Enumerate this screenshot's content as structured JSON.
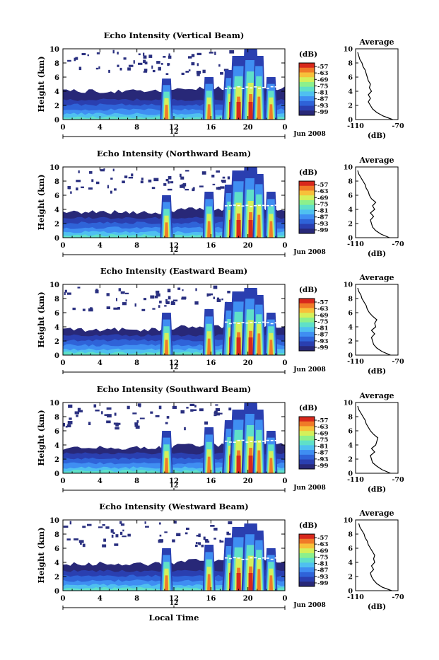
{
  "figure": {
    "xlabel": "Local Time",
    "ylabel": "Height (km)",
    "date": "Jun 2008",
    "noon_label": "12",
    "cbar_title": "(dB)",
    "avg_title": "Average",
    "avg_xlabel": "(dB)"
  },
  "chart_data": [
    {
      "type": "heatmap",
      "title": "Echo Intensity (Vertical Beam)",
      "xlabel": "",
      "ylabel": "Height (km)",
      "x_ticks": [
        "0",
        "4",
        "8",
        "12",
        "16",
        "20",
        "0"
      ],
      "y_ticks": [
        0,
        2,
        4,
        6,
        8,
        10
      ],
      "ylim": [
        0,
        10
      ],
      "colorbar": {
        "label": "(dB)",
        "ticks": [
          -57,
          -63,
          -69,
          -75,
          -81,
          -87,
          -93,
          -99
        ]
      },
      "boundary_layer_top_km": 4.0,
      "convective_cells_hour": [
        11.2,
        15.8,
        18.2,
        19.0,
        20.3,
        21.2,
        22.5
      ],
      "cell_top_km": [
        5.8,
        6.0,
        7.0,
        9.0,
        10.0,
        9.0,
        6.0
      ],
      "profile": {
        "title": "Average",
        "xlabel": "(dB)",
        "xticks": [
          -110,
          -70
        ],
        "yticks": [
          0,
          2,
          4,
          6,
          8,
          10
        ],
        "height_km": [
          0,
          0.5,
          1,
          1.5,
          2,
          2.5,
          3,
          3.5,
          4,
          4.5,
          5,
          5.5,
          6,
          6.5,
          7,
          7.5,
          8,
          8.5,
          9,
          9.5
        ],
        "value_db": [
          -75,
          -84,
          -90,
          -94,
          -96,
          -98,
          -96,
          -98,
          -95,
          -97,
          -96,
          -98,
          -99,
          -100,
          -101,
          -103,
          -104,
          -106,
          -107,
          -108
        ]
      }
    },
    {
      "type": "heatmap",
      "title": "Echo Intensity (Northward Beam)",
      "xlabel": "",
      "ylabel": "Height (km)",
      "x_ticks": [
        "0",
        "4",
        "8",
        "12",
        "16",
        "20",
        "0"
      ],
      "y_ticks": [
        0,
        2,
        4,
        6,
        8,
        10
      ],
      "ylim": [
        0,
        10
      ],
      "colorbar": {
        "label": "(dB)",
        "ticks": [
          -57,
          -63,
          -69,
          -75,
          -81,
          -87,
          -93,
          -99
        ]
      },
      "boundary_layer_top_km": 3.6,
      "convective_cells_hour": [
        11.2,
        15.8,
        18.2,
        19.0,
        20.3,
        21.2,
        22.5
      ],
      "cell_top_km": [
        6.0,
        6.5,
        7.5,
        9.5,
        10.0,
        9.0,
        6.5
      ],
      "profile": {
        "title": "Average",
        "xlabel": "(dB)",
        "xticks": [
          -110,
          -70
        ],
        "yticks": [
          0,
          2,
          4,
          6,
          8,
          10
        ],
        "height_km": [
          0,
          0.5,
          1,
          1.5,
          2,
          2.5,
          3,
          3.5,
          4,
          4.5,
          5,
          5.5,
          6,
          6.5,
          7,
          7.5,
          8,
          8.5,
          9,
          9.5
        ],
        "value_db": [
          -78,
          -86,
          -91,
          -94,
          -95,
          -96,
          -93,
          -96,
          -92,
          -94,
          -91,
          -95,
          -97,
          -98,
          -100,
          -101,
          -103,
          -105,
          -107,
          -108
        ]
      }
    },
    {
      "type": "heatmap",
      "title": "Echo Intensity (Eastward Beam)",
      "xlabel": "",
      "ylabel": "Height (km)",
      "x_ticks": [
        "0",
        "4",
        "8",
        "12",
        "16",
        "20",
        "0"
      ],
      "y_ticks": [
        0,
        2,
        4,
        6,
        8,
        10
      ],
      "ylim": [
        0,
        10
      ],
      "colorbar": {
        "label": "(dB)",
        "ticks": [
          -57,
          -63,
          -69,
          -75,
          -81,
          -87,
          -93,
          -99
        ]
      },
      "boundary_layer_top_km": 3.6,
      "convective_cells_hour": [
        11.2,
        15.8,
        18.2,
        19.0,
        20.3,
        21.2,
        22.5
      ],
      "cell_top_km": [
        6.0,
        6.5,
        7.5,
        9.0,
        9.5,
        8.5,
        6.0
      ],
      "profile": {
        "title": "Average",
        "xlabel": "(dB)",
        "xticks": [
          -110,
          -70
        ],
        "yticks": [
          0,
          2,
          4,
          6,
          8,
          10
        ],
        "height_km": [
          0,
          0.5,
          1,
          1.5,
          2,
          2.5,
          3,
          3.5,
          4,
          4.5,
          5,
          5.5,
          6,
          6.5,
          7,
          7.5,
          8,
          8.5,
          9,
          9.5
        ],
        "value_db": [
          -77,
          -85,
          -90,
          -93,
          -94,
          -95,
          -92,
          -95,
          -91,
          -92,
          -90,
          -94,
          -97,
          -99,
          -100,
          -102,
          -104,
          -105,
          -107,
          -108
        ]
      }
    },
    {
      "type": "heatmap",
      "title": "Echo Intensity (Southward Beam)",
      "xlabel": "",
      "ylabel": "Height (km)",
      "x_ticks": [
        "0",
        "4",
        "8",
        "12",
        "16",
        "20",
        "0"
      ],
      "y_ticks": [
        0,
        2,
        4,
        6,
        8,
        10
      ],
      "ylim": [
        0,
        10
      ],
      "colorbar": {
        "label": "(dB)",
        "ticks": [
          -57,
          -63,
          -69,
          -75,
          -81,
          -87,
          -93,
          -99
        ]
      },
      "boundary_layer_top_km": 3.6,
      "convective_cells_hour": [
        11.2,
        15.8,
        18.2,
        19.0,
        20.3,
        21.2,
        22.5
      ],
      "cell_top_km": [
        6.0,
        6.5,
        7.5,
        9.0,
        10.0,
        9.0,
        6.0
      ],
      "profile": {
        "title": "Average",
        "xlabel": "(dB)",
        "xticks": [
          -110,
          -70
        ],
        "yticks": [
          0,
          2,
          4,
          6,
          8,
          10
        ],
        "height_km": [
          0,
          0.5,
          1,
          1.5,
          2,
          2.5,
          3,
          3.5,
          4,
          4.5,
          5,
          5.5,
          6,
          6.5,
          7,
          7.5,
          8,
          8.5,
          9,
          9.5
        ],
        "value_db": [
          -77,
          -85,
          -90,
          -94,
          -95,
          -96,
          -92,
          -95,
          -91,
          -90,
          -89,
          -93,
          -96,
          -98,
          -100,
          -101,
          -103,
          -105,
          -107,
          -108
        ]
      }
    },
    {
      "type": "heatmap",
      "title": "Echo Intensity (Westward Beam)",
      "xlabel": "Local Time",
      "ylabel": "Height (km)",
      "x_ticks": [
        "0",
        "4",
        "8",
        "12",
        "16",
        "20",
        "0"
      ],
      "y_ticks": [
        0,
        2,
        4,
        6,
        8,
        10
      ],
      "ylim": [
        0,
        10
      ],
      "colorbar": {
        "label": "(dB)",
        "ticks": [
          -57,
          -63,
          -69,
          -75,
          -81,
          -87,
          -93,
          -99
        ]
      },
      "boundary_layer_top_km": 3.8,
      "convective_cells_hour": [
        11.2,
        15.8,
        18.2,
        19.0,
        20.3,
        21.2,
        22.5
      ],
      "cell_top_km": [
        6.0,
        6.5,
        7.5,
        9.0,
        9.5,
        8.5,
        6.0
      ],
      "profile": {
        "title": "Average",
        "xlabel": "(dB)",
        "xticks": [
          -110,
          -70
        ],
        "yticks": [
          0,
          2,
          4,
          6,
          8,
          10
        ],
        "height_km": [
          0,
          0.5,
          1,
          1.5,
          2,
          2.5,
          3,
          3.5,
          4,
          4.5,
          5,
          5.5,
          6,
          6.5,
          7,
          7.5,
          8,
          8.5,
          9,
          9.5
        ],
        "value_db": [
          -76,
          -85,
          -90,
          -93,
          -95,
          -96,
          -93,
          -95,
          -92,
          -93,
          -92,
          -94,
          -96,
          -98,
          -99,
          -101,
          -102,
          -104,
          -106,
          -107
        ]
      }
    }
  ],
  "colors": {
    "colormap": [
      "#282878",
      "#2a3fb0",
      "#2f63d8",
      "#3f8ef2",
      "#4fc0f0",
      "#5fe0c8",
      "#8cf08c",
      "#d4f05a",
      "#f7c03a",
      "#f07a28",
      "#d8281c"
    ]
  }
}
